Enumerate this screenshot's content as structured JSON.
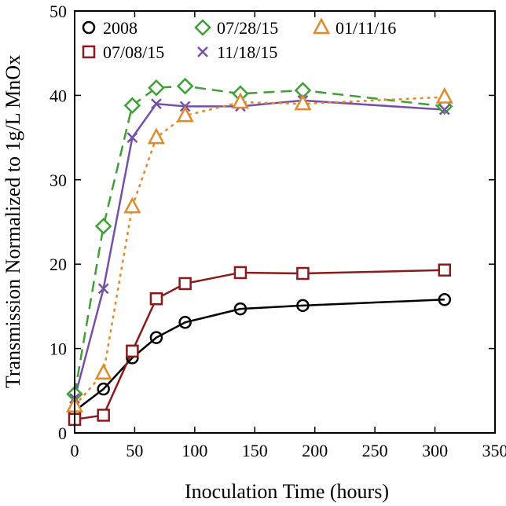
{
  "chart_data": {
    "type": "line",
    "xlabel": "Inoculation Time (hours)",
    "ylabel": "Transmission Normalized to 1g/L MnOx",
    "xlim": [
      0,
      350
    ],
    "ylim": [
      0,
      50
    ],
    "xticks": [
      "0",
      "50",
      "100",
      "150",
      "200",
      "250",
      "300",
      "350"
    ],
    "yticks": [
      "0",
      "10",
      "20",
      "30",
      "40",
      "50"
    ],
    "grid": false,
    "legend_position": "top-left",
    "series": [
      {
        "name": "2008",
        "color": "#000000",
        "marker": "circle",
        "line_style": "solid",
        "x": [
          0,
          24,
          48,
          68,
          92,
          138,
          190,
          308
        ],
        "y": [
          2.6,
          5.2,
          8.9,
          11.3,
          13.1,
          14.7,
          15.1,
          15.8
        ]
      },
      {
        "name": "07/08/15",
        "color": "#8b1a1a",
        "marker": "square",
        "line_style": "solid",
        "x": [
          0,
          24,
          48,
          68,
          92,
          138,
          190,
          308
        ],
        "y": [
          1.6,
          2.1,
          9.7,
          15.9,
          17.7,
          19.0,
          18.9,
          19.3
        ]
      },
      {
        "name": "07/28/15",
        "color": "#3f9f35",
        "marker": "diamond",
        "line_style": "dashed",
        "x": [
          0,
          24,
          48,
          68,
          92,
          138,
          190,
          308
        ],
        "y": [
          4.6,
          24.5,
          38.8,
          40.9,
          41.1,
          40.2,
          40.6,
          38.7
        ]
      },
      {
        "name": "11/18/15",
        "color": "#7450a8",
        "marker": "x",
        "line_style": "solid",
        "x": [
          0,
          24,
          48,
          68,
          92,
          138,
          190,
          308
        ],
        "y": [
          4.1,
          17.1,
          35.0,
          39.0,
          38.7,
          38.7,
          39.4,
          38.3
        ]
      },
      {
        "name": "01/11/16",
        "color": "#e08a2c",
        "marker": "triangle",
        "line_style": "dotted",
        "x": [
          0,
          24,
          48,
          68,
          92,
          138,
          190,
          308
        ],
        "y": [
          3.2,
          7.1,
          26.8,
          35.0,
          37.6,
          39.2,
          39.0,
          39.8
        ]
      }
    ]
  }
}
